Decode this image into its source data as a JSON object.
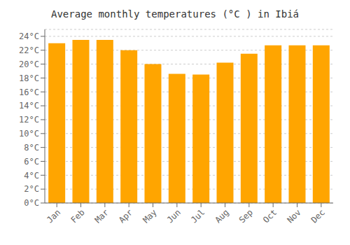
{
  "chart_data": {
    "type": "bar",
    "title": "Average monthly temperatures (°C ) in Ibiá",
    "categories": [
      "Jan",
      "Feb",
      "Mar",
      "Apr",
      "May",
      "Jun",
      "Jul",
      "Aug",
      "Sep",
      "Oct",
      "Nov",
      "Dec"
    ],
    "values": [
      23.0,
      23.5,
      23.5,
      22.0,
      20.0,
      18.6,
      18.5,
      20.2,
      21.5,
      22.7,
      22.7,
      22.7
    ],
    "color": "#FFA500",
    "ylim": [
      0,
      25
    ],
    "yticks": [
      {
        "value": 0,
        "label": "0°C"
      },
      {
        "value": 2,
        "label": "2°C"
      },
      {
        "value": 4,
        "label": "4°C"
      },
      {
        "value": 6,
        "label": "6°C"
      },
      {
        "value": 8,
        "label": "8°C"
      },
      {
        "value": 10,
        "label": "10°C"
      },
      {
        "value": 12,
        "label": "12°C"
      },
      {
        "value": 14,
        "label": "14°C"
      },
      {
        "value": 16,
        "label": "16°C"
      },
      {
        "value": 18,
        "label": "18°C"
      },
      {
        "value": 20,
        "label": "20°C"
      },
      {
        "value": 22,
        "label": "22°C"
      },
      {
        "value": 24,
        "label": "24°C"
      }
    ],
    "grid": true
  }
}
